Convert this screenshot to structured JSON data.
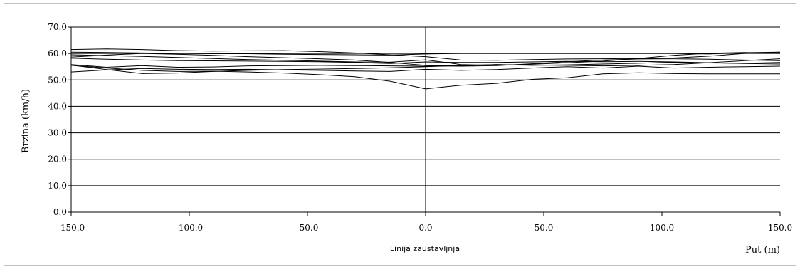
{
  "chart_data": {
    "type": "line",
    "title": "",
    "xlabel": "Put (m)",
    "ylabel": "Brzina (km/h)",
    "center_label": "Linija zaustavljnja",
    "xlim": [
      -150,
      150
    ],
    "ylim": [
      0,
      70
    ],
    "x_ticks": [
      "-150.0",
      "-100.0",
      "-50.0",
      "0.0",
      "50.0",
      "100.0",
      "150.0"
    ],
    "y_ticks": [
      "0.0",
      "10.0",
      "20.0",
      "30.0",
      "40.0",
      "50.0",
      "60.0",
      "70.0"
    ],
    "grid": "horizontal",
    "legend": "none",
    "x": [
      -150,
      -135,
      -120,
      -105,
      -90,
      -75,
      -60,
      -45,
      -30,
      -15,
      0,
      15,
      30,
      45,
      60,
      75,
      90,
      105,
      120,
      135,
      150
    ],
    "series": [
      {
        "values": [
          61.5,
          61.7,
          61.5,
          61.1,
          60.9,
          61.0,
          61.1,
          60.7,
          60.2,
          59.5,
          58.8,
          57.5,
          57.4,
          57.7,
          57.9,
          58.0,
          58.1,
          58.3,
          59.0,
          60.0,
          60.5
        ]
      },
      {
        "values": [
          60.5,
          60.4,
          60.2,
          60.0,
          59.9,
          59.9,
          59.7,
          59.6,
          59.5,
          59.4,
          59.8,
          60.0,
          60.0,
          60.0,
          60.0,
          60.0,
          60.0,
          60.0,
          59.8,
          60.3,
          60.5
        ]
      },
      {
        "values": [
          59.5,
          59.2,
          58.9,
          58.5,
          58.1,
          57.7,
          57.4,
          57.1,
          56.8,
          56.7,
          57.6,
          55.8,
          55.5,
          55.9,
          56.5,
          57.1,
          58.1,
          59.3,
          60.1,
          60.4,
          60.0
        ]
      },
      {
        "values": [
          58.6,
          59.4,
          60.0,
          59.7,
          59.3,
          58.8,
          58.4,
          58.0,
          57.5,
          56.6,
          55.5,
          55.2,
          55.4,
          56.1,
          56.9,
          57.5,
          57.9,
          58.0,
          57.8,
          57.5,
          57.3
        ]
      },
      {
        "values": [
          58.2,
          57.8,
          57.5,
          57.3,
          57.2,
          57.1,
          57.0,
          56.9,
          56.6,
          56.2,
          56.8,
          56.6,
          56.6,
          56.8,
          57.0,
          56.9,
          57.0,
          56.8,
          56.5,
          56.2,
          56.0
        ]
      },
      {
        "values": [
          55.8,
          54.8,
          55.4,
          54.8,
          54.9,
          55.3,
          55.4,
          55.5,
          55.4,
          55.3,
          55.2,
          55.3,
          55.8,
          55.5,
          55.7,
          56.0,
          56.3,
          56.7,
          56.4,
          56.3,
          56.6
        ]
      },
      {
        "values": [
          55.6,
          53.9,
          52.4,
          52.6,
          53.2,
          53.6,
          53.9,
          54.1,
          54.3,
          54.6,
          55.0,
          55.5,
          55.8,
          55.6,
          55.5,
          55.3,
          55.5,
          55.8,
          56.5,
          57.3,
          58.0
        ]
      },
      {
        "values": [
          53.0,
          53.8,
          54.3,
          54.0,
          53.9,
          54.0,
          53.8,
          53.6,
          53.4,
          53.2,
          54.0,
          53.6,
          53.9,
          54.5,
          55.0,
          54.5,
          55.2,
          54.5,
          54.8,
          55.0,
          55.2
        ]
      },
      {
        "values": [
          55.5,
          54.5,
          53.6,
          53.2,
          53.3,
          53.0,
          52.6,
          52.0,
          51.2,
          49.5,
          46.6,
          48.0,
          48.7,
          50.2,
          50.8,
          52.3,
          52.7,
          52.4,
          52.3,
          52.3,
          52.3
        ]
      }
    ]
  }
}
